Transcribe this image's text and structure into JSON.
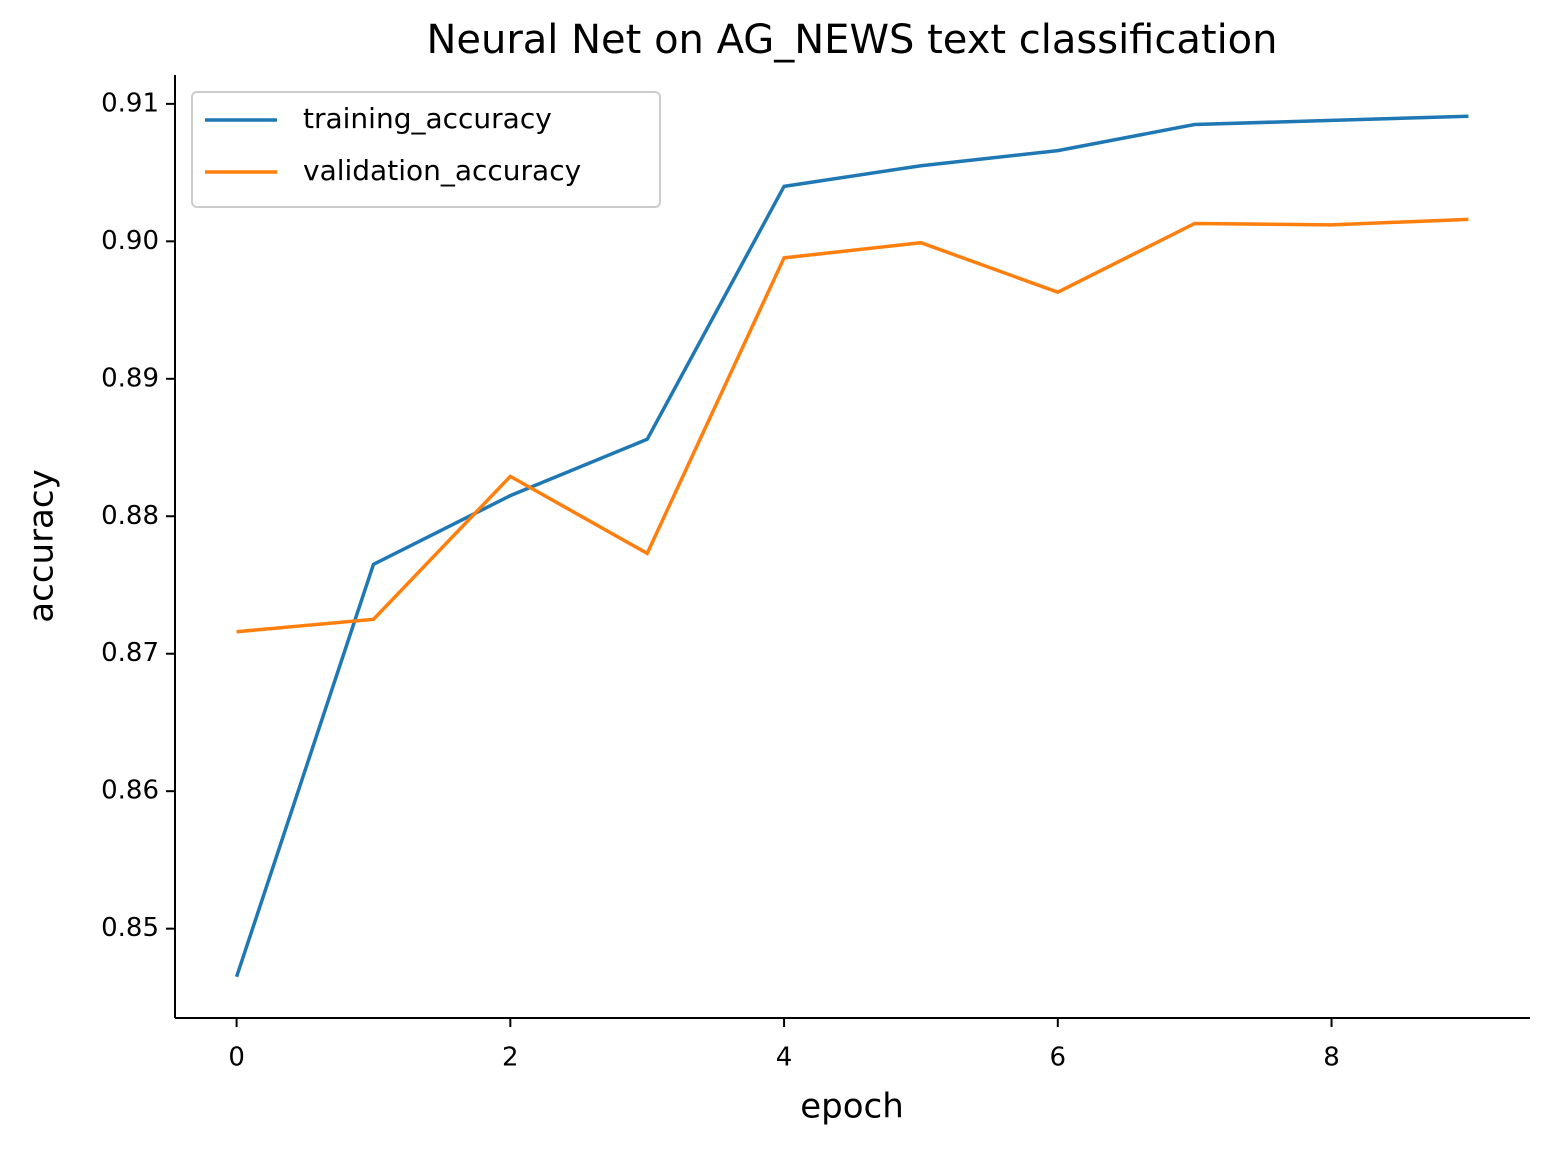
{
  "chart_data": {
    "type": "line",
    "title": "Neural Net on AG_NEWS text classification",
    "x_label": "epoch",
    "y_label": "accuracy",
    "x": [
      0,
      1,
      2,
      3,
      4,
      5,
      6,
      7,
      8,
      9
    ],
    "series": [
      {
        "name": "training_accuracy",
        "color": "#1f77b4",
        "values": [
          0.8465,
          0.8765,
          0.8815,
          0.8856,
          0.904,
          0.9055,
          0.9066,
          0.9085,
          0.9088,
          0.9091
        ]
      },
      {
        "name": "validation_accuracy",
        "color": "#ff7f0e",
        "values": [
          0.8716,
          0.8725,
          0.8829,
          0.8773,
          0.8988,
          0.8999,
          0.8963,
          0.9013,
          0.9012,
          0.9016
        ]
      }
    ],
    "xlim": [
      -0.45,
      9.45
    ],
    "xticks": [
      0,
      2,
      4,
      6,
      8
    ],
    "ylim": [
      0.8435,
      0.9121
    ],
    "yticks": [
      0.85,
      0.86,
      0.87,
      0.88,
      0.89,
      {
        "value": 0.9,
        "label": "0.90"
      },
      0.91
    ],
    "legend": "upper left"
  }
}
